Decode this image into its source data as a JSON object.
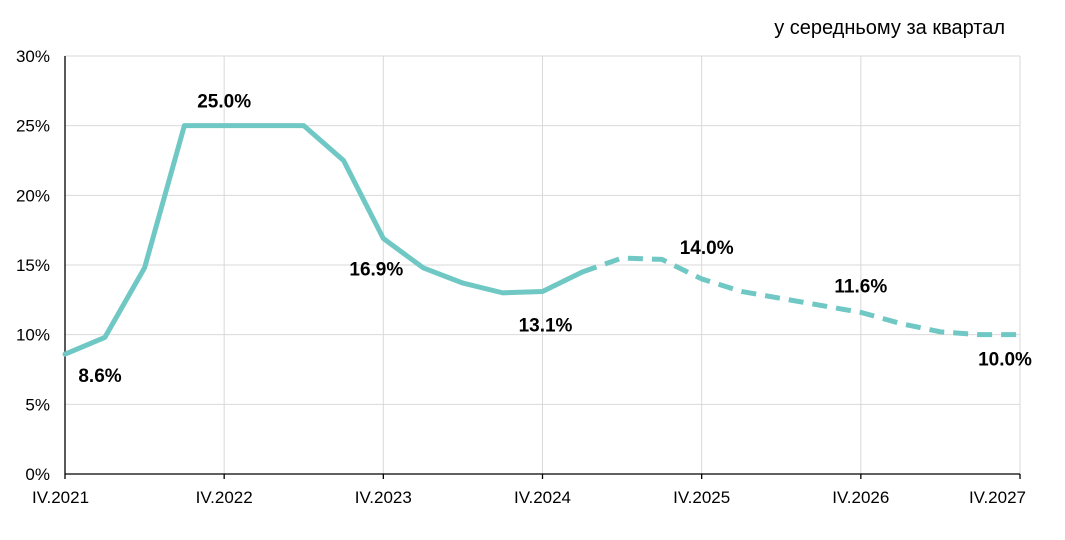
{
  "chart_data": {
    "type": "line",
    "title": "",
    "subtitle": "у середньому за квартал",
    "xlabel": "",
    "ylabel": "",
    "ylim": [
      0,
      30
    ],
    "yticks": [
      "0%",
      "5%",
      "10%",
      "15%",
      "20%",
      "25%",
      "30%"
    ],
    "ytick_values": [
      0,
      5,
      10,
      15,
      20,
      25,
      30
    ],
    "x_tick_labels": [
      "IV.2021",
      "IV.2022",
      "IV.2023",
      "IV.2024",
      "IV.2025",
      "IV.2026",
      "IV.2027"
    ],
    "x_tick_index": [
      0,
      4,
      8,
      12,
      16,
      20,
      24
    ],
    "grid": true,
    "legend": "none",
    "series": [
      {
        "color": "#70c8c4",
        "values": [
          8.6,
          9.8,
          14.8,
          25.0,
          25.0,
          25.0,
          25.0,
          22.5,
          16.9,
          14.8,
          13.7,
          13.0,
          13.1,
          14.5,
          15.5,
          15.4,
          14.0,
          13.1,
          12.6,
          12.1,
          11.6,
          10.8,
          10.2,
          10.0,
          10.0
        ],
        "actual_until_index": 13
      }
    ],
    "annotations": [
      {
        "index": 0,
        "text": "8.6%"
      },
      {
        "index": 4,
        "text": "25.0%"
      },
      {
        "index": 8,
        "text": "16.9%"
      },
      {
        "index": 12,
        "text": "13.1%"
      },
      {
        "index": 16,
        "text": "14.0%"
      },
      {
        "index": 20,
        "text": "11.6%"
      },
      {
        "index": 24,
        "text": "10.0%"
      }
    ]
  }
}
